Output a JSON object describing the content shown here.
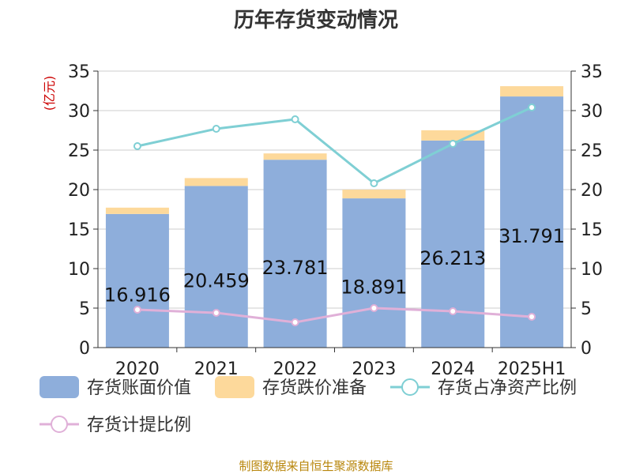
{
  "title": "历年存货变动情况",
  "source": "制图数据来自恒生聚源数据库",
  "chart_data": {
    "type": "bar",
    "categories": [
      "2020",
      "2021",
      "2022",
      "2023",
      "2024",
      "2025H1"
    ],
    "left_unit": "(亿元)",
    "right_unit": "%",
    "ylim_left": [
      0,
      35
    ],
    "ylim_right": [
      0,
      35
    ],
    "yticks": [
      0,
      5,
      10,
      15,
      20,
      25,
      30,
      35
    ],
    "grid": true,
    "legend_position": "bottom",
    "series": [
      {
        "name": "存货账面价值",
        "kind": "bar",
        "axis": "left",
        "color": "#8eaedb",
        "values": [
          16.916,
          20.459,
          23.781,
          18.891,
          26.213,
          31.791
        ],
        "labels": [
          "16.916",
          "20.459",
          "23.781",
          "18.891",
          "26.213",
          "31.791"
        ]
      },
      {
        "name": "存货跌价准备",
        "kind": "bar",
        "axis": "left",
        "color": "#fdd99b",
        "values": [
          0.8,
          1.0,
          0.8,
          1.1,
          1.3,
          1.3
        ]
      },
      {
        "name": "存货占净资产比例",
        "kind": "line",
        "axis": "right",
        "color": "#7fcfd4",
        "values": [
          25.5,
          27.7,
          28.9,
          20.8,
          25.8,
          30.4
        ]
      },
      {
        "name": "存货计提比例",
        "kind": "line",
        "axis": "right",
        "color": "#e0b0d8",
        "values": [
          4.8,
          4.4,
          3.2,
          5.0,
          4.6,
          3.9
        ]
      }
    ]
  }
}
